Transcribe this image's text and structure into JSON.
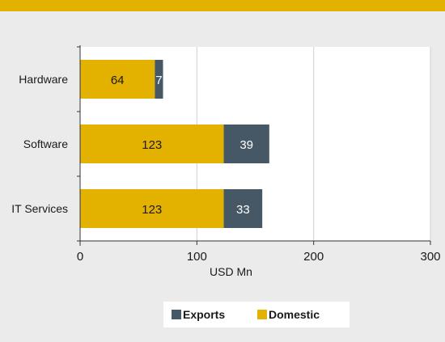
{
  "chart_data": {
    "type": "bar",
    "orientation": "horizontal",
    "stacked": true,
    "categories": [
      "Hardware",
      "Software",
      "IT Services"
    ],
    "series": [
      {
        "name": "Domestic",
        "values": [
          64,
          123,
          123
        ],
        "color": "#e3b200",
        "label_color": "#1a1a1a"
      },
      {
        "name": "Exports",
        "values": [
          7,
          39,
          33
        ],
        "color": "#465865",
        "label_color": "#ffffff"
      }
    ],
    "xlabel": "USD Mn",
    "xlim": [
      0,
      300
    ],
    "xticks": [
      0,
      100,
      200,
      300
    ],
    "grid": true,
    "legend": {
      "position": "bottom",
      "order": [
        "Exports",
        "Domestic"
      ]
    }
  },
  "colors": {
    "background": "#ecebeb",
    "plot_background": "#ffffff",
    "accent_band": "#e3b200",
    "grid": "#cfcfcf"
  }
}
